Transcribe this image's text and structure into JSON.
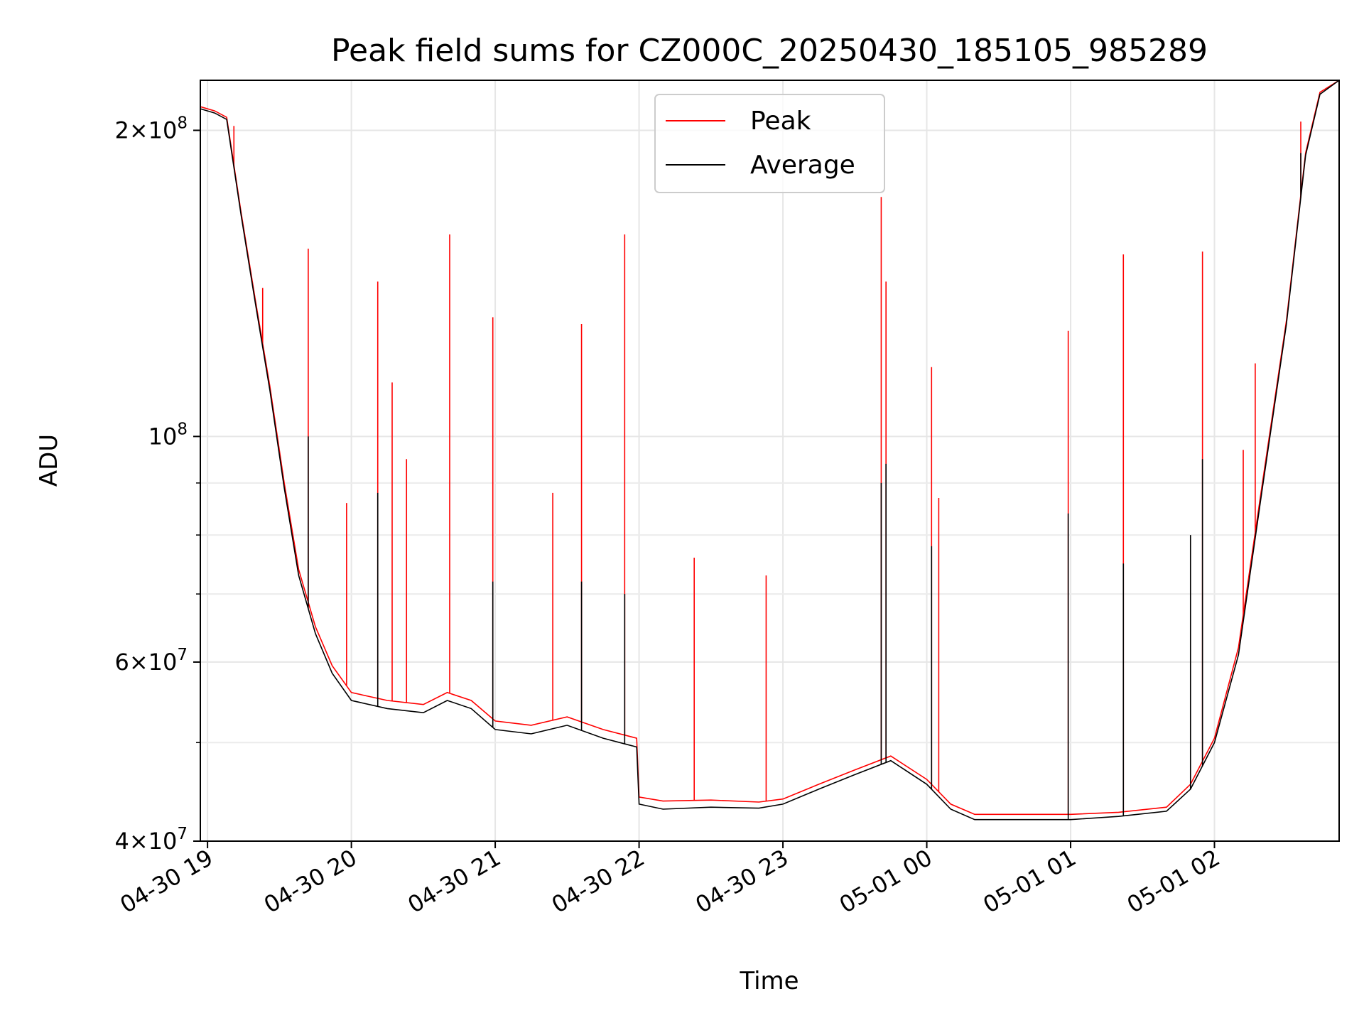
{
  "chart_data": {
    "type": "line",
    "title": "Peak field sums for CZ000C_20250430_185105_985289",
    "xlabel": "Time",
    "ylabel": "ADU",
    "y_scale": "log",
    "ylim": [
      40000000,
      224000000
    ],
    "xlim": [
      "2025-04-30 18:57",
      "2025-05-01 02:52"
    ],
    "grid": true,
    "legend_position": "top-center",
    "x_tick_labels": [
      "04-30 19",
      "04-30 20",
      "04-30 21",
      "04-30 22",
      "04-30 23",
      "05-01 00",
      "05-01 01",
      "05-01 02"
    ],
    "x_ticks": [
      "2025-04-30 19:00",
      "2025-04-30 20:00",
      "2025-04-30 21:00",
      "2025-04-30 22:00",
      "2025-04-30 23:00",
      "2025-05-01 00:00",
      "2025-05-01 01:00",
      "2025-05-01 02:00"
    ],
    "y_major_ticks": [
      {
        "value": 40000000,
        "mantissa": "4",
        "exponent": "7"
      },
      {
        "value": 60000000,
        "mantissa": "6",
        "exponent": "7"
      },
      {
        "value": 100000000,
        "mantissa": "",
        "exponent": "8"
      },
      {
        "value": 200000000,
        "mantissa": "2",
        "exponent": "8"
      }
    ],
    "y_minor_ticks": [
      50000000,
      70000000,
      80000000,
      90000000
    ],
    "series": [
      {
        "name": "Peak",
        "color": "#ff0000",
        "x": [
          "2025-04-30 18:57",
          "2025-04-30 19:03",
          "2025-04-30 19:08",
          "2025-04-30 19:14",
          "2025-04-30 19:20",
          "2025-04-30 19:26",
          "2025-04-30 19:32",
          "2025-04-30 19:38",
          "2025-04-30 19:45",
          "2025-04-30 19:52",
          "2025-04-30 20:00",
          "2025-04-30 20:15",
          "2025-04-30 20:30",
          "2025-04-30 20:40",
          "2025-04-30 20:50",
          "2025-04-30 21:00",
          "2025-04-30 21:15",
          "2025-04-30 21:30",
          "2025-04-30 21:45",
          "2025-04-30 21:59",
          "2025-04-30 22:00",
          "2025-04-30 22:10",
          "2025-04-30 22:30",
          "2025-04-30 22:50",
          "2025-04-30 23:00",
          "2025-04-30 23:15",
          "2025-04-30 23:30",
          "2025-04-30 23:45",
          "2025-05-01 00:00",
          "2025-05-01 00:10",
          "2025-05-01 00:20",
          "2025-05-01 00:40",
          "2025-05-01 01:00",
          "2025-05-01 01:20",
          "2025-05-01 01:40",
          "2025-05-01 01:50",
          "2025-05-01 02:00",
          "2025-05-01 02:10",
          "2025-05-01 02:20",
          "2025-05-01 02:30",
          "2025-05-01 02:38",
          "2025-05-01 02:44",
          "2025-05-01 02:52"
        ],
        "y": [
          211000000,
          209000000,
          206000000,
          166000000,
          136000000,
          112000000,
          90000000,
          74000000,
          65000000,
          59500000,
          56000000,
          55000000,
          54500000,
          56000000,
          55000000,
          52500000,
          52000000,
          53000000,
          51500000,
          50500000,
          44200000,
          43800000,
          43900000,
          43700000,
          44000000,
          45500000,
          47000000,
          48500000,
          46000000,
          43500000,
          42500000,
          42500000,
          42500000,
          42700000,
          43200000,
          45500000,
          50500000,
          62000000,
          90000000,
          130000000,
          190000000,
          218000000,
          224000000
        ],
        "spikes": [
          {
            "x": "2025-04-30 19:11",
            "y": 202000000
          },
          {
            "x": "2025-04-30 19:23",
            "y": 140000000
          },
          {
            "x": "2025-04-30 19:42",
            "y": 153000000
          },
          {
            "x": "2025-04-30 19:58",
            "y": 86000000
          },
          {
            "x": "2025-04-30 20:11",
            "y": 142000000
          },
          {
            "x": "2025-04-30 20:17",
            "y": 113000000
          },
          {
            "x": "2025-04-30 20:23",
            "y": 95000000
          },
          {
            "x": "2025-04-30 20:41",
            "y": 158000000
          },
          {
            "x": "2025-04-30 20:59",
            "y": 131000000
          },
          {
            "x": "2025-04-30 21:24",
            "y": 88000000
          },
          {
            "x": "2025-04-30 21:36",
            "y": 129000000
          },
          {
            "x": "2025-04-30 21:54",
            "y": 158000000
          },
          {
            "x": "2025-04-30 22:23",
            "y": 76000000
          },
          {
            "x": "2025-04-30 22:53",
            "y": 73000000
          },
          {
            "x": "2025-04-30 23:41",
            "y": 172000000
          },
          {
            "x": "2025-04-30 23:43",
            "y": 142000000
          },
          {
            "x": "2025-05-01 00:02",
            "y": 117000000
          },
          {
            "x": "2025-05-01 00:05",
            "y": 87000000
          },
          {
            "x": "2025-05-01 00:59",
            "y": 127000000
          },
          {
            "x": "2025-05-01 01:22",
            "y": 151000000
          },
          {
            "x": "2025-05-01 01:55",
            "y": 152000000
          },
          {
            "x": "2025-05-01 02:12",
            "y": 97000000
          },
          {
            "x": "2025-05-01 02:17",
            "y": 118000000
          },
          {
            "x": "2025-05-01 02:36",
            "y": 204000000
          }
        ]
      },
      {
        "name": "Average",
        "color": "#000000",
        "x": [
          "2025-04-30 18:57",
          "2025-04-30 19:03",
          "2025-04-30 19:08",
          "2025-04-30 19:14",
          "2025-04-30 19:20",
          "2025-04-30 19:26",
          "2025-04-30 19:32",
          "2025-04-30 19:38",
          "2025-04-30 19:45",
          "2025-04-30 19:52",
          "2025-04-30 20:00",
          "2025-04-30 20:15",
          "2025-04-30 20:30",
          "2025-04-30 20:40",
          "2025-04-30 20:50",
          "2025-04-30 21:00",
          "2025-04-30 21:15",
          "2025-04-30 21:30",
          "2025-04-30 21:45",
          "2025-04-30 21:59",
          "2025-04-30 22:00",
          "2025-04-30 22:10",
          "2025-04-30 22:30",
          "2025-04-30 22:50",
          "2025-04-30 23:00",
          "2025-04-30 23:15",
          "2025-04-30 23:30",
          "2025-04-30 23:45",
          "2025-05-01 00:00",
          "2025-05-01 00:10",
          "2025-05-01 00:20",
          "2025-05-01 00:40",
          "2025-05-01 01:00",
          "2025-05-01 01:20",
          "2025-05-01 01:40",
          "2025-05-01 01:50",
          "2025-05-01 02:00",
          "2025-05-01 02:10",
          "2025-05-01 02:20",
          "2025-05-01 02:30",
          "2025-05-01 02:38",
          "2025-05-01 02:44",
          "2025-05-01 02:52"
        ],
        "y": [
          210000000,
          208000000,
          205000000,
          165000000,
          135000000,
          111000000,
          89000000,
          73000000,
          64000000,
          58500000,
          55000000,
          54000000,
          53500000,
          55000000,
          54000000,
          51500000,
          51000000,
          52000000,
          50500000,
          49500000,
          43500000,
          43000000,
          43200000,
          43100000,
          43500000,
          45000000,
          46500000,
          48000000,
          45500000,
          43000000,
          42000000,
          42000000,
          42000000,
          42300000,
          42800000,
          45000000,
          50000000,
          61000000,
          89000000,
          129000000,
          189000000,
          217000000,
          224000000
        ],
        "spikes": [
          {
            "x": "2025-04-30 19:42",
            "y": 100000000
          },
          {
            "x": "2025-04-30 20:11",
            "y": 88000000
          },
          {
            "x": "2025-04-30 20:59",
            "y": 72000000
          },
          {
            "x": "2025-04-30 21:36",
            "y": 72000000
          },
          {
            "x": "2025-04-30 21:54",
            "y": 70000000
          },
          {
            "x": "2025-04-30 23:41",
            "y": 90000000
          },
          {
            "x": "2025-04-30 23:43",
            "y": 94000000
          },
          {
            "x": "2025-05-01 00:02",
            "y": 78000000
          },
          {
            "x": "2025-05-01 00:59",
            "y": 84000000
          },
          {
            "x": "2025-05-01 01:22",
            "y": 75000000
          },
          {
            "x": "2025-05-01 01:50",
            "y": 80000000
          },
          {
            "x": "2025-05-01 01:55",
            "y": 95000000
          },
          {
            "x": "2025-05-01 02:36",
            "y": 190000000
          }
        ]
      }
    ]
  }
}
